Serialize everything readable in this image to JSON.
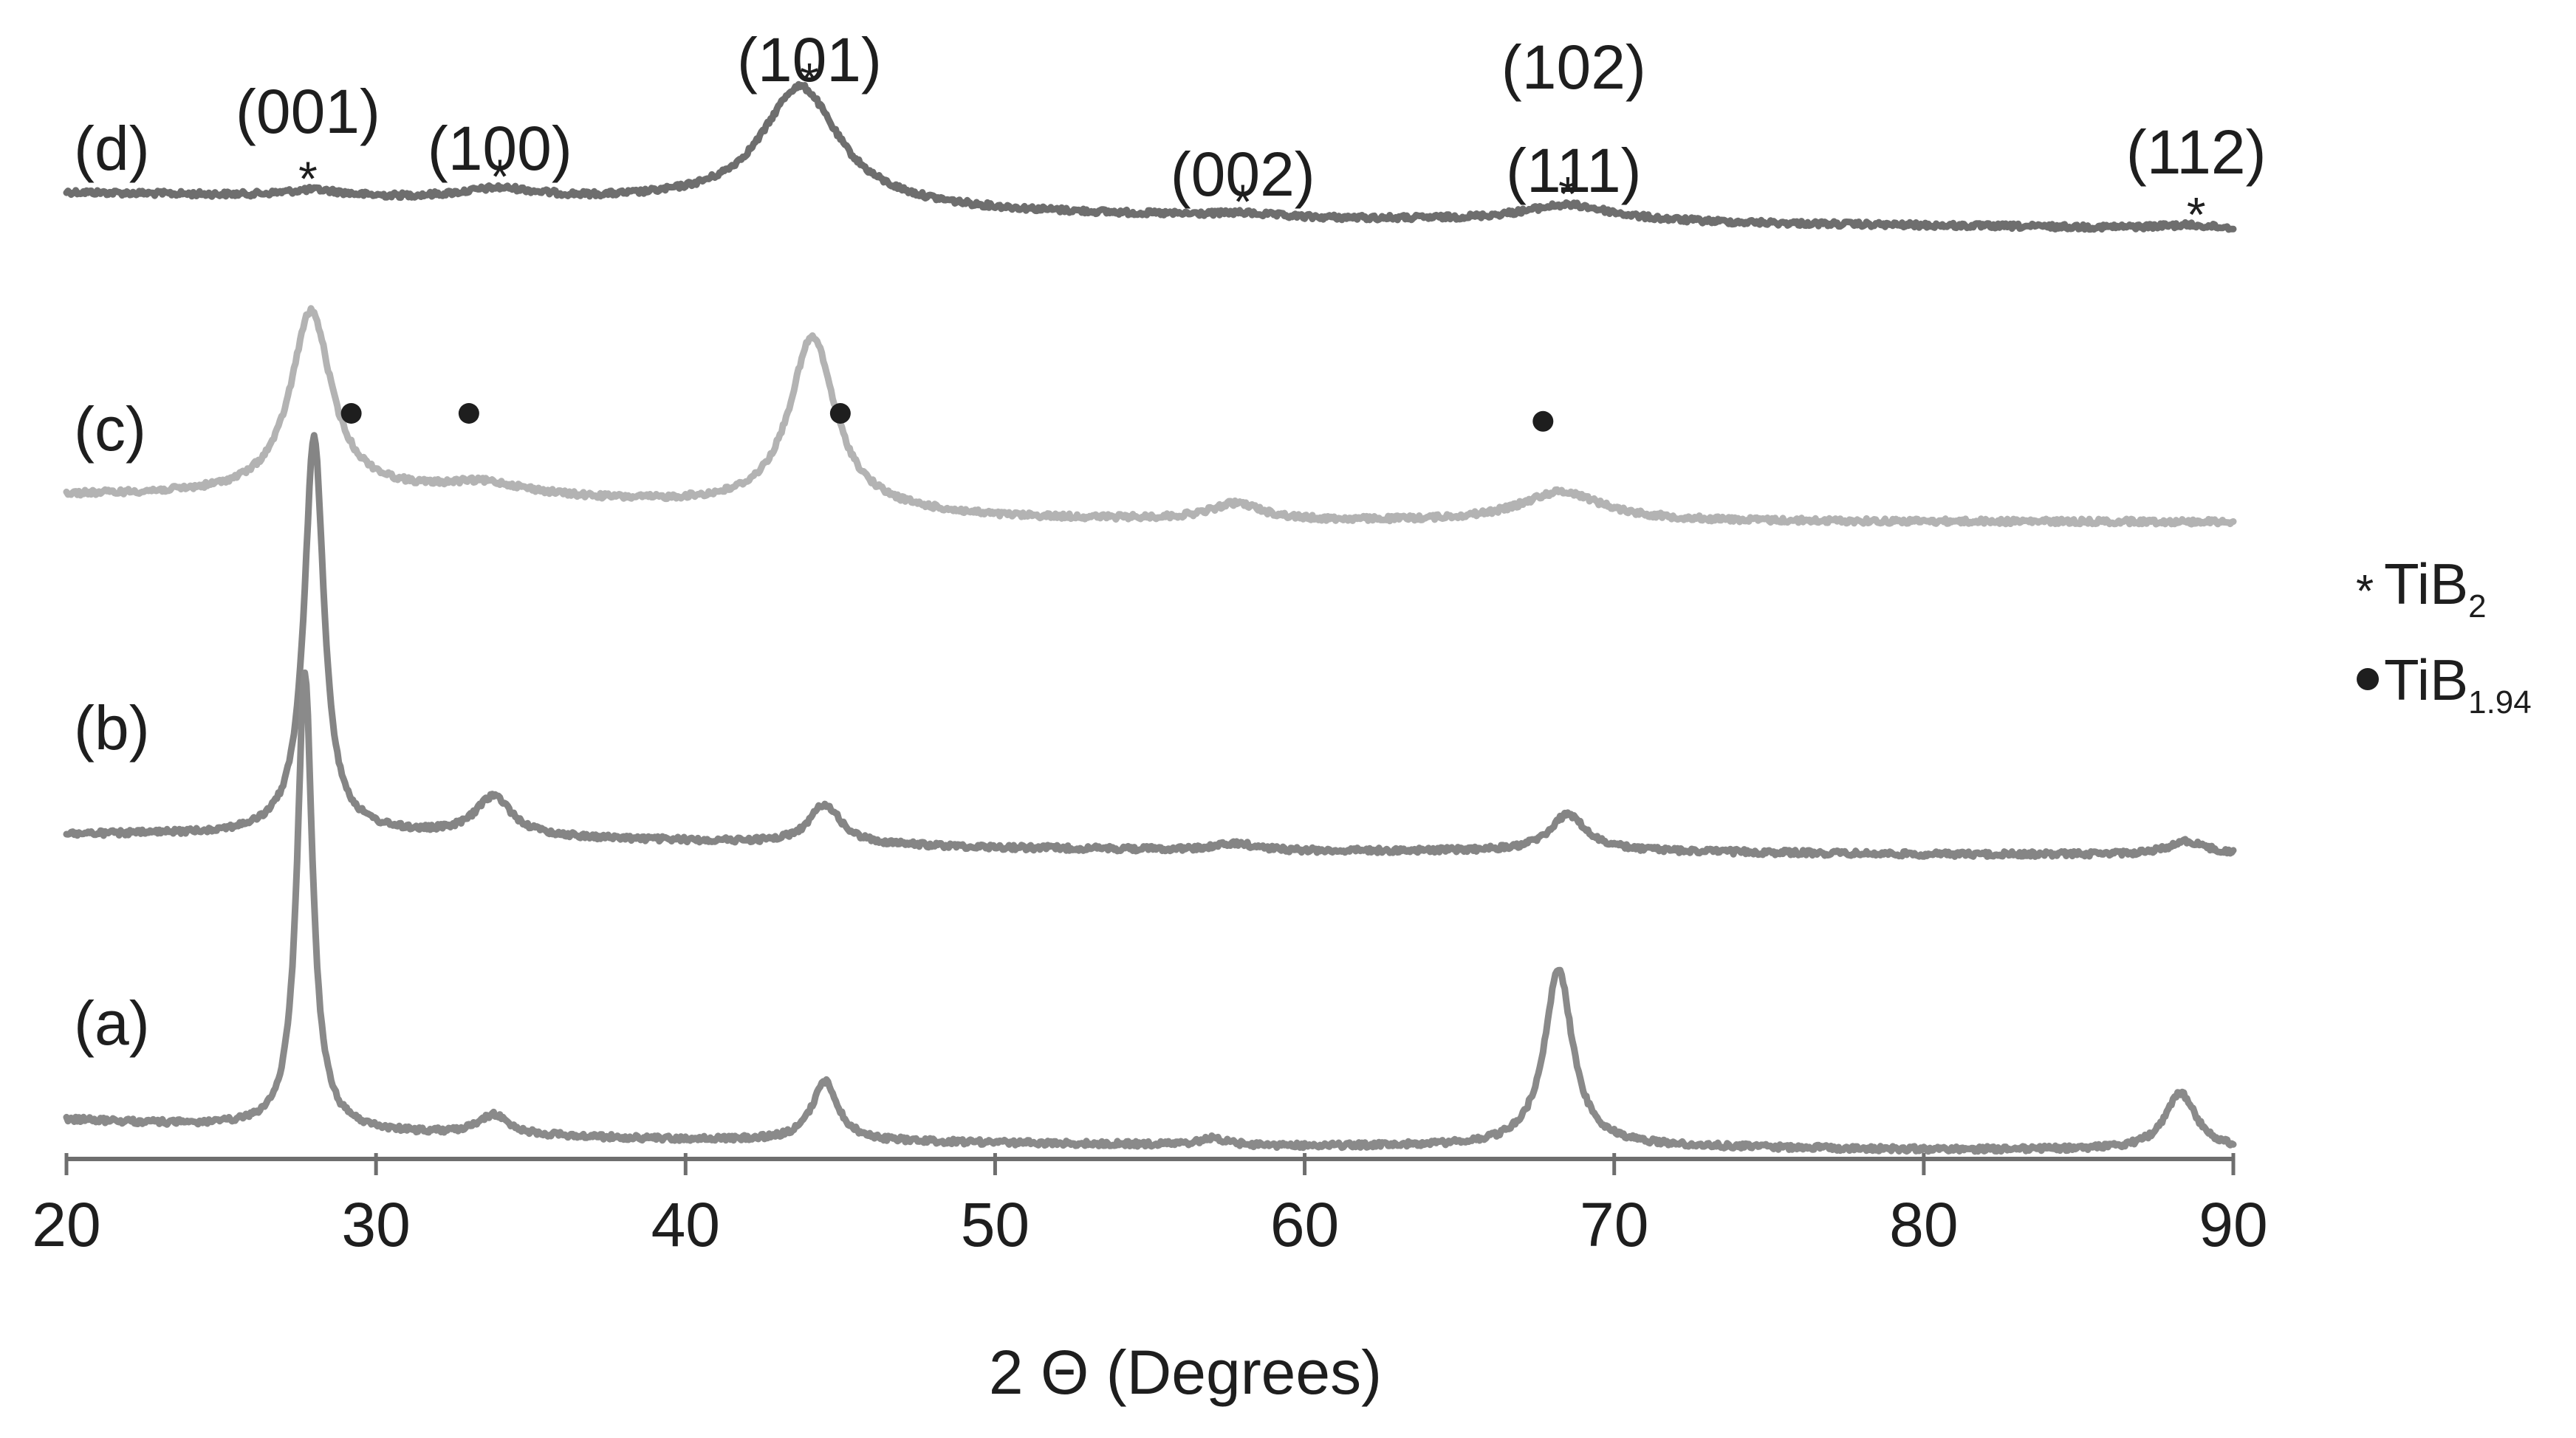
{
  "chart_data": {
    "type": "line",
    "title": "",
    "xlabel": "2 Θ (Degrees)",
    "ylabel": "",
    "xlim": [
      20,
      90
    ],
    "xticks": [
      20,
      30,
      40,
      50,
      60,
      70,
      80,
      90
    ],
    "grid": false,
    "y_units": "relative intensity (arbitrary, offset per pattern)",
    "legend": {
      "position": "right",
      "entries": [
        {
          "marker": "asterisk",
          "label": "TiB",
          "subscript": "2"
        },
        {
          "marker": "dot",
          "label": "TiB",
          "subscript": "1.94"
        }
      ]
    },
    "series": [
      {
        "name": "(d)",
        "color": "#6e6e6e",
        "baseline": [
          [
            20,
            18
          ],
          [
            30,
            16
          ],
          [
            40,
            15
          ],
          [
            50,
            12
          ],
          [
            60,
            10
          ],
          [
            70,
            9
          ],
          [
            80,
            8
          ],
          [
            90,
            7
          ]
        ],
        "peaks": [
          {
            "x": 28.0,
            "h": 2,
            "w": 1.2
          },
          {
            "x": 34.0,
            "h": 3,
            "w": 1.5
          },
          {
            "x": 43.7,
            "h": 36,
            "w": 1.5
          },
          {
            "x": 58.0,
            "h": 1,
            "w": 1.2
          },
          {
            "x": 68.5,
            "h": 5,
            "w": 1.8
          },
          {
            "x": 88.5,
            "h": 1,
            "w": 1.2
          }
        ]
      },
      {
        "name": "(c)",
        "color": "#b3b3b3",
        "baseline": [
          [
            20,
            12
          ],
          [
            30,
            12
          ],
          [
            40,
            9
          ],
          [
            50,
            5
          ],
          [
            60,
            4
          ],
          [
            70,
            4
          ],
          [
            80,
            4
          ],
          [
            90,
            4
          ]
        ],
        "peaks": [
          {
            "x": 27.9,
            "h": 55,
            "w": 0.8
          },
          {
            "x": 33.5,
            "h": 4,
            "w": 1.8
          },
          {
            "x": 44.1,
            "h": 52,
            "w": 0.9
          },
          {
            "x": 57.8,
            "h": 5,
            "w": 1.0
          },
          {
            "x": 68.3,
            "h": 9,
            "w": 1.6
          }
        ]
      },
      {
        "name": "(b)",
        "color": "#858585",
        "baseline": [
          [
            20,
            7
          ],
          [
            30,
            7
          ],
          [
            40,
            5
          ],
          [
            50,
            3
          ],
          [
            60,
            2
          ],
          [
            70,
            2
          ],
          [
            80,
            1
          ],
          [
            90,
            1
          ]
        ],
        "peaks": [
          {
            "x": 28.0,
            "h": 120,
            "w": 0.38
          },
          {
            "x": 33.8,
            "h": 12,
            "w": 0.7
          },
          {
            "x": 44.5,
            "h": 12,
            "w": 0.6
          },
          {
            "x": 57.8,
            "h": 2,
            "w": 0.8
          },
          {
            "x": 68.5,
            "h": 11,
            "w": 0.7
          },
          {
            "x": 88.5,
            "h": 4,
            "w": 0.7
          }
        ]
      },
      {
        "name": "(a)",
        "color": "#8a8a8a",
        "baseline": [
          [
            20,
            10
          ],
          [
            30,
            6
          ],
          [
            40,
            4
          ],
          [
            50,
            3
          ],
          [
            60,
            2
          ],
          [
            70,
            2
          ],
          [
            80,
            1
          ],
          [
            90,
            1
          ]
        ],
        "peaks": [
          {
            "x": 27.7,
            "h": 138,
            "w": 0.3
          },
          {
            "x": 33.8,
            "h": 6,
            "w": 0.6
          },
          {
            "x": 44.5,
            "h": 18,
            "w": 0.5
          },
          {
            "x": 57.0,
            "h": 2,
            "w": 0.5
          },
          {
            "x": 68.2,
            "h": 53,
            "w": 0.55
          },
          {
            "x": 88.3,
            "h": 17,
            "w": 0.6
          }
        ]
      }
    ],
    "reflections": [
      {
        "hkl": [
          "(001)"
        ],
        "x": 27.8,
        "series": "(d)"
      },
      {
        "hkl": [
          "(100)"
        ],
        "x": 34.0,
        "series": "(d)"
      },
      {
        "hkl": [
          "(101)"
        ],
        "x": 44.0,
        "series": "(d)"
      },
      {
        "hkl": [
          "(002)"
        ],
        "x": 58.0,
        "series": "(d)"
      },
      {
        "hkl": [
          "(102)",
          "(111)"
        ],
        "x": 68.5,
        "series": "(d)"
      },
      {
        "hkl": [
          "(112)"
        ],
        "x": 88.8,
        "series": "(d)"
      }
    ],
    "tib194_markers": [
      {
        "x": 29.2,
        "series": "(c)"
      },
      {
        "x": 33.0,
        "series": "(c)"
      },
      {
        "x": 45.0,
        "series": "(c)"
      },
      {
        "x": 67.7,
        "series": "(c)"
      }
    ]
  }
}
